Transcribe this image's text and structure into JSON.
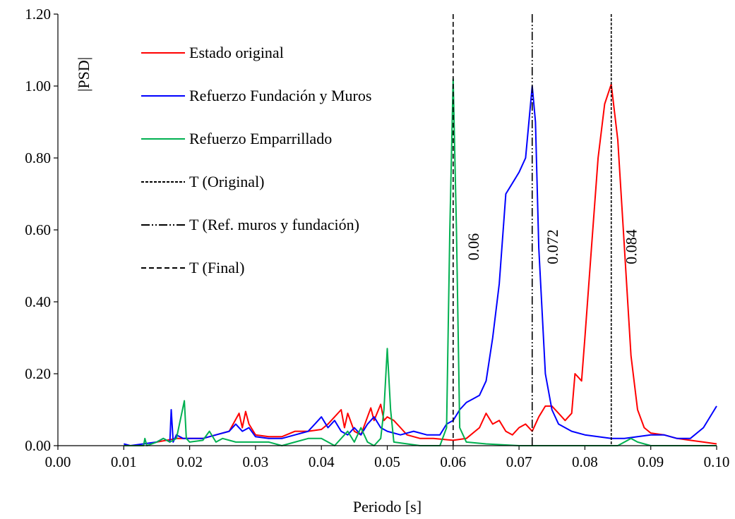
{
  "chart_data": {
    "type": "line",
    "title": "",
    "xlabel": "Periodo [s]",
    "ylabel": "|PSD|",
    "xlim": [
      0.0,
      0.1
    ],
    "ylim": [
      0.0,
      1.2
    ],
    "x_ticks": [
      0.0,
      0.01,
      0.02,
      0.03,
      0.04,
      0.05,
      0.06,
      0.07,
      0.08,
      0.09,
      0.1
    ],
    "x_tick_labels": [
      "0.00",
      "0.01",
      "0.02",
      "0.03",
      "0.04",
      "0.05",
      "0.06",
      "0.07",
      "0.08",
      "0.09",
      "0.10"
    ],
    "y_ticks": [
      0.0,
      0.2,
      0.4,
      0.6,
      0.8,
      1.0,
      1.2
    ],
    "y_tick_labels": [
      "0.00",
      "0.20",
      "0.40",
      "0.60",
      "0.80",
      "1.00",
      "1.20"
    ],
    "grid": false,
    "legend_position": "top-left",
    "series": [
      {
        "name": "Estado original",
        "color": "#ff0000",
        "style": "solid",
        "points": [
          [
            0.015,
            0.01
          ],
          [
            0.018,
            0.02
          ],
          [
            0.02,
            0.02
          ],
          [
            0.022,
            0.02
          ],
          [
            0.024,
            0.03
          ],
          [
            0.026,
            0.04
          ],
          [
            0.0275,
            0.09
          ],
          [
            0.028,
            0.05
          ],
          [
            0.0285,
            0.095
          ],
          [
            0.029,
            0.06
          ],
          [
            0.03,
            0.03
          ],
          [
            0.032,
            0.025
          ],
          [
            0.034,
            0.025
          ],
          [
            0.036,
            0.04
          ],
          [
            0.038,
            0.04
          ],
          [
            0.04,
            0.045
          ],
          [
            0.041,
            0.06
          ],
          [
            0.042,
            0.08
          ],
          [
            0.043,
            0.1
          ],
          [
            0.0435,
            0.05
          ],
          [
            0.044,
            0.09
          ],
          [
            0.045,
            0.04
          ],
          [
            0.046,
            0.03
          ],
          [
            0.047,
            0.08
          ],
          [
            0.0475,
            0.105
          ],
          [
            0.048,
            0.07
          ],
          [
            0.049,
            0.115
          ],
          [
            0.0495,
            0.07
          ],
          [
            0.05,
            0.08
          ],
          [
            0.051,
            0.07
          ],
          [
            0.052,
            0.05
          ],
          [
            0.053,
            0.03
          ],
          [
            0.055,
            0.02
          ],
          [
            0.057,
            0.02
          ],
          [
            0.06,
            0.015
          ],
          [
            0.062,
            0.02
          ],
          [
            0.064,
            0.05
          ],
          [
            0.065,
            0.09
          ],
          [
            0.066,
            0.06
          ],
          [
            0.067,
            0.07
          ],
          [
            0.068,
            0.04
          ],
          [
            0.069,
            0.03
          ],
          [
            0.07,
            0.05
          ],
          [
            0.071,
            0.06
          ],
          [
            0.072,
            0.04
          ],
          [
            0.073,
            0.08
          ],
          [
            0.074,
            0.11
          ],
          [
            0.075,
            0.11
          ],
          [
            0.076,
            0.09
          ],
          [
            0.077,
            0.07
          ],
          [
            0.078,
            0.09
          ],
          [
            0.0785,
            0.2
          ],
          [
            0.079,
            0.19
          ],
          [
            0.0795,
            0.18
          ],
          [
            0.08,
            0.3
          ],
          [
            0.081,
            0.55
          ],
          [
            0.082,
            0.8
          ],
          [
            0.083,
            0.95
          ],
          [
            0.084,
            1.005
          ],
          [
            0.085,
            0.85
          ],
          [
            0.086,
            0.55
          ],
          [
            0.087,
            0.25
          ],
          [
            0.088,
            0.1
          ],
          [
            0.089,
            0.05
          ],
          [
            0.09,
            0.035
          ],
          [
            0.092,
            0.03
          ],
          [
            0.094,
            0.02
          ],
          [
            0.096,
            0.015
          ],
          [
            0.098,
            0.01
          ],
          [
            0.1,
            0.005
          ]
        ]
      },
      {
        "name": "Refuerzo Fundación y Muros",
        "color": "#0000ff",
        "style": "solid",
        "points": [
          [
            0.01,
            0.005
          ],
          [
            0.011,
            0.0
          ],
          [
            0.015,
            0.01
          ],
          [
            0.016,
            0.02
          ],
          [
            0.017,
            0.01
          ],
          [
            0.0172,
            0.1
          ],
          [
            0.0175,
            0.01
          ],
          [
            0.018,
            0.03
          ],
          [
            0.019,
            0.02
          ],
          [
            0.02,
            0.02
          ],
          [
            0.022,
            0.02
          ],
          [
            0.024,
            0.03
          ],
          [
            0.026,
            0.04
          ],
          [
            0.027,
            0.06
          ],
          [
            0.028,
            0.04
          ],
          [
            0.029,
            0.05
          ],
          [
            0.03,
            0.025
          ],
          [
            0.032,
            0.02
          ],
          [
            0.034,
            0.02
          ],
          [
            0.036,
            0.03
          ],
          [
            0.038,
            0.04
          ],
          [
            0.039,
            0.06
          ],
          [
            0.04,
            0.08
          ],
          [
            0.041,
            0.05
          ],
          [
            0.042,
            0.07
          ],
          [
            0.043,
            0.04
          ],
          [
            0.044,
            0.03
          ],
          [
            0.045,
            0.05
          ],
          [
            0.046,
            0.03
          ],
          [
            0.047,
            0.06
          ],
          [
            0.048,
            0.08
          ],
          [
            0.049,
            0.05
          ],
          [
            0.05,
            0.04
          ],
          [
            0.052,
            0.03
          ],
          [
            0.054,
            0.04
          ],
          [
            0.056,
            0.03
          ],
          [
            0.058,
            0.03
          ],
          [
            0.059,
            0.06
          ],
          [
            0.06,
            0.07
          ],
          [
            0.061,
            0.1
          ],
          [
            0.062,
            0.12
          ],
          [
            0.063,
            0.13
          ],
          [
            0.064,
            0.14
          ],
          [
            0.065,
            0.18
          ],
          [
            0.066,
            0.3
          ],
          [
            0.067,
            0.45
          ],
          [
            0.068,
            0.7
          ],
          [
            0.069,
            0.73
          ],
          [
            0.07,
            0.76
          ],
          [
            0.071,
            0.8
          ],
          [
            0.0715,
            0.9
          ],
          [
            0.072,
            1.0
          ],
          [
            0.0725,
            0.9
          ],
          [
            0.073,
            0.55
          ],
          [
            0.074,
            0.2
          ],
          [
            0.075,
            0.1
          ],
          [
            0.076,
            0.06
          ],
          [
            0.078,
            0.04
          ],
          [
            0.08,
            0.03
          ],
          [
            0.082,
            0.025
          ],
          [
            0.084,
            0.02
          ],
          [
            0.086,
            0.02
          ],
          [
            0.088,
            0.025
          ],
          [
            0.09,
            0.03
          ],
          [
            0.092,
            0.03
          ],
          [
            0.094,
            0.02
          ],
          [
            0.096,
            0.02
          ],
          [
            0.098,
            0.05
          ],
          [
            0.1,
            0.11
          ]
        ]
      },
      {
        "name": "Refuerzo Emparrillado",
        "color": "#00b050",
        "style": "solid",
        "points": [
          [
            0.01,
            0.0
          ],
          [
            0.013,
            0.0
          ],
          [
            0.0132,
            0.02
          ],
          [
            0.0135,
            0.0
          ],
          [
            0.015,
            0.01
          ],
          [
            0.016,
            0.02
          ],
          [
            0.017,
            0.01
          ],
          [
            0.018,
            0.02
          ],
          [
            0.0192,
            0.125
          ],
          [
            0.0195,
            0.02
          ],
          [
            0.02,
            0.01
          ],
          [
            0.022,
            0.015
          ],
          [
            0.023,
            0.04
          ],
          [
            0.024,
            0.01
          ],
          [
            0.025,
            0.02
          ],
          [
            0.027,
            0.01
          ],
          [
            0.028,
            0.01
          ],
          [
            0.03,
            0.01
          ],
          [
            0.032,
            0.01
          ],
          [
            0.034,
            0.0
          ],
          [
            0.036,
            0.01
          ],
          [
            0.038,
            0.02
          ],
          [
            0.04,
            0.02
          ],
          [
            0.042,
            0.0
          ],
          [
            0.044,
            0.04
          ],
          [
            0.045,
            0.01
          ],
          [
            0.046,
            0.05
          ],
          [
            0.047,
            0.01
          ],
          [
            0.048,
            0.0
          ],
          [
            0.049,
            0.02
          ],
          [
            0.0495,
            0.1
          ],
          [
            0.05,
            0.27
          ],
          [
            0.0505,
            0.1
          ],
          [
            0.051,
            0.01
          ],
          [
            0.055,
            0.0
          ],
          [
            0.058,
            0.0
          ],
          [
            0.059,
            0.05
          ],
          [
            0.0595,
            0.6
          ],
          [
            0.06,
            1.02
          ],
          [
            0.0605,
            0.6
          ],
          [
            0.061,
            0.05
          ],
          [
            0.062,
            0.01
          ],
          [
            0.065,
            0.005
          ],
          [
            0.07,
            0.0
          ],
          [
            0.08,
            0.0
          ],
          [
            0.085,
            0.0
          ],
          [
            0.087,
            0.02
          ],
          [
            0.088,
            0.01
          ],
          [
            0.09,
            0.0
          ],
          [
            0.1,
            0.0
          ]
        ]
      }
    ],
    "vertical_lines": [
      {
        "name": "T (Original)",
        "x": 0.084,
        "style": "dotted",
        "label": "0.084"
      },
      {
        "name": "T (Ref. muros y fundación)",
        "x": 0.072,
        "style": "dashdotdot",
        "label": "0.072"
      },
      {
        "name": "T (Final)",
        "x": 0.06,
        "style": "dashed",
        "label": "0.06"
      }
    ],
    "legend": [
      {
        "label": "Estado original",
        "color": "#ff0000",
        "style": "solid"
      },
      {
        "label": "Refuerzo Fundación y Muros",
        "color": "#0000ff",
        "style": "solid"
      },
      {
        "label": "Refuerzo Emparrillado",
        "color": "#00b050",
        "style": "solid"
      },
      {
        "label": "T (Original)",
        "color": "#000000",
        "style": "dotted"
      },
      {
        "label": "T (Ref. muros y fundación)",
        "color": "#000000",
        "style": "dashdotdot"
      },
      {
        "label": "T (Final)",
        "color": "#000000",
        "style": "dashed"
      }
    ]
  }
}
